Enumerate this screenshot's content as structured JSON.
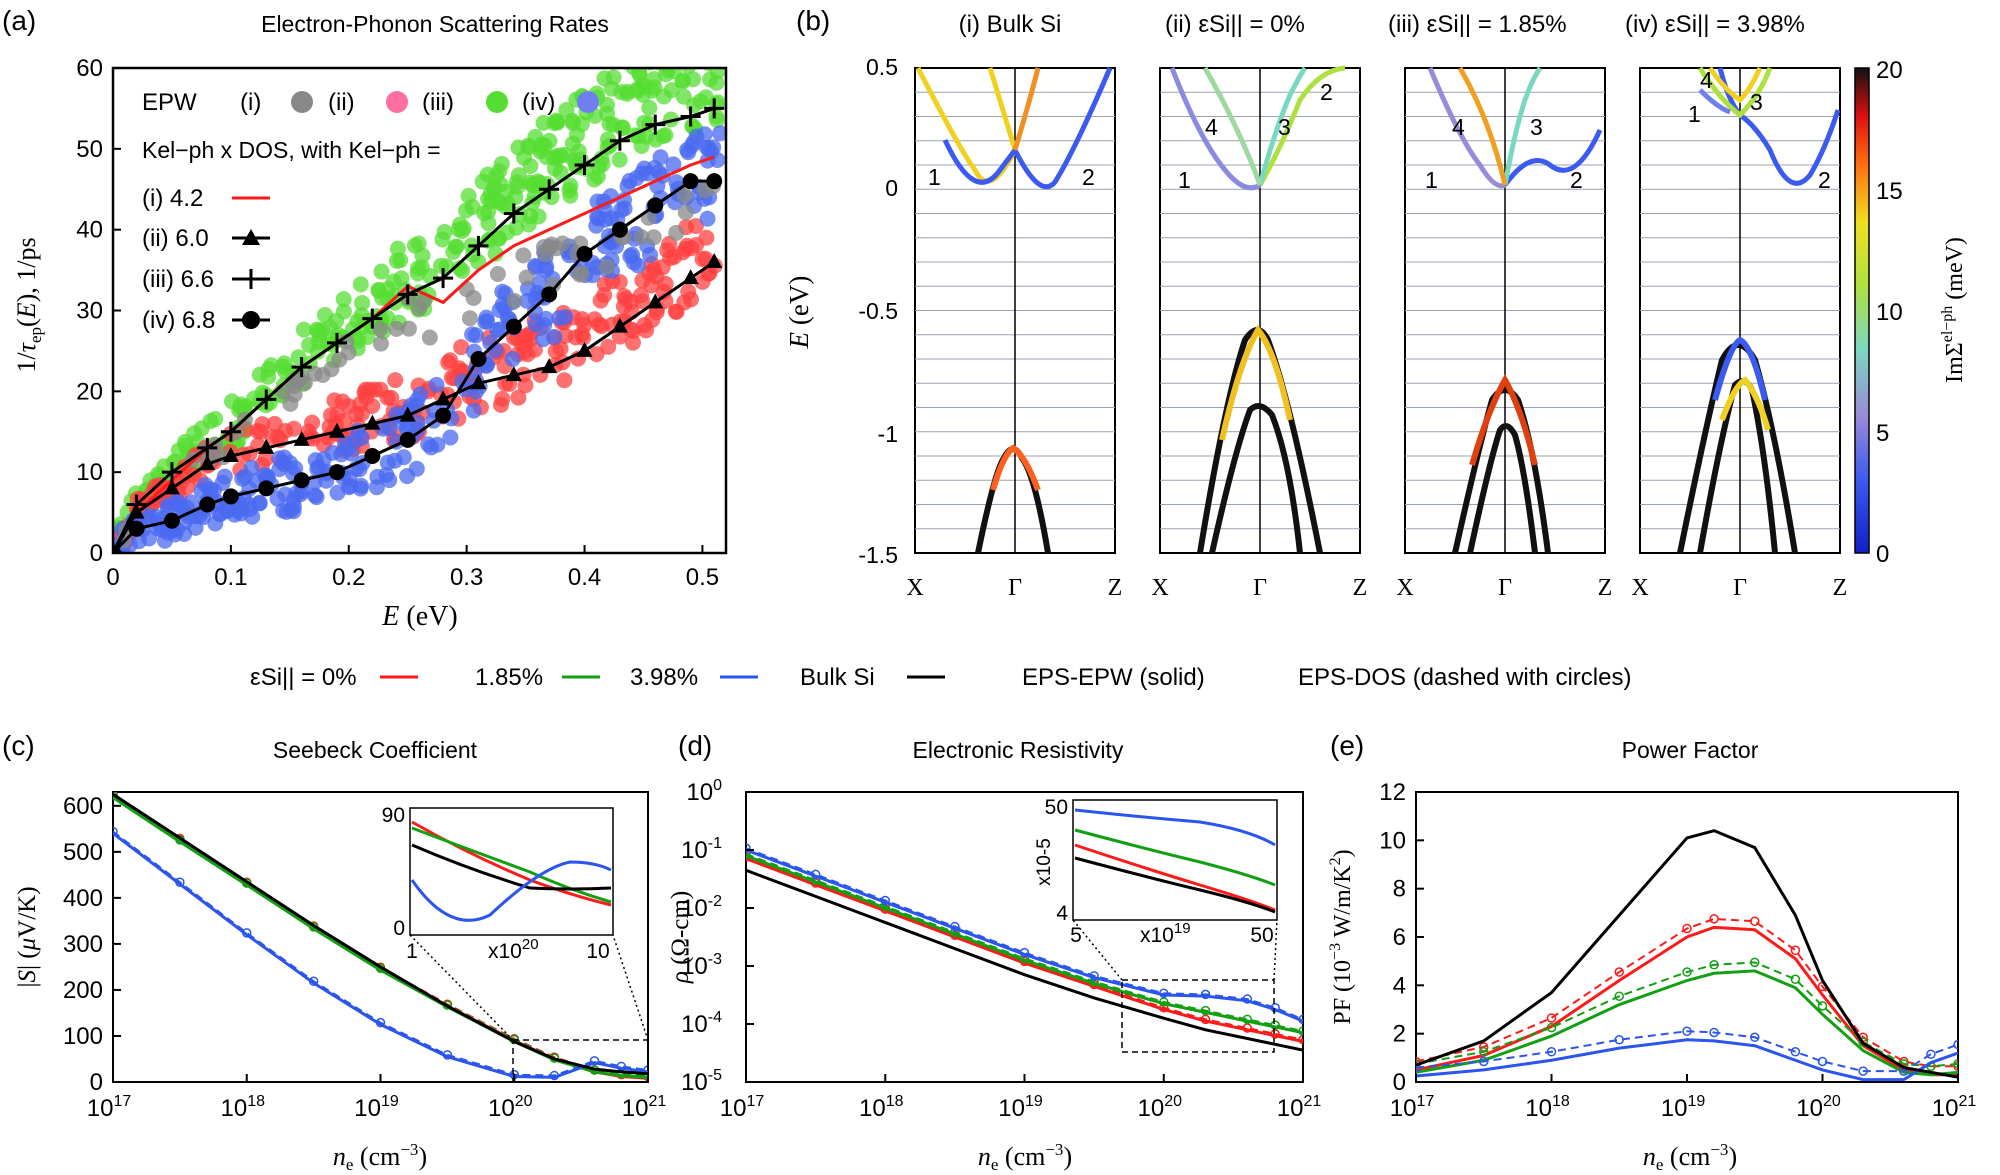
{
  "colors": {
    "red": "#ff1a1a",
    "green": "#12a012",
    "blue": "#2a55ee",
    "black": "#000000",
    "grey": "#888888",
    "pink": "#ff6fa0",
    "lgreen": "#55dd33",
    "lblue": "#6f7ff0"
  },
  "panel_a": {
    "label": "(a)",
    "title": "Electron-Phonon Scattering Rates",
    "xlabel": "E (eV)",
    "ylabel": "1/τep(E), 1/ps",
    "xticks": [
      "0",
      "0.1",
      "0.2",
      "0.3",
      "0.4",
      "0.5"
    ],
    "yticks": [
      "0",
      "10",
      "20",
      "30",
      "40",
      "50",
      "60"
    ],
    "legend": {
      "epw_label": "EPW",
      "epw_entries": [
        "(i)",
        "(ii)",
        "(iii)",
        "(iv)"
      ],
      "kel_line": "Kel−ph x DOS, with Kel−ph =",
      "entries": [
        {
          "label": "(i) 4.2",
          "color": "red",
          "marker": "none"
        },
        {
          "label": "(ii) 6.0",
          "color": "black",
          "marker": "triangle"
        },
        {
          "label": "(iii) 6.6",
          "color": "black",
          "marker": "plus"
        },
        {
          "label": "(iv) 6.8",
          "color": "black",
          "marker": "circle"
        }
      ]
    }
  },
  "panel_b": {
    "label": "(b)",
    "subplots": [
      {
        "title": "(i) Bulk Si",
        "band_labels": [
          "1",
          "2"
        ]
      },
      {
        "title": "(ii) εSi|| = 0%",
        "band_labels": [
          "1",
          "2",
          "3",
          "4"
        ]
      },
      {
        "title": "(iii) εSi|| = 1.85%",
        "band_labels": [
          "1",
          "2",
          "3",
          "4"
        ]
      },
      {
        "title": "(iv) εSi|| = 3.98%",
        "band_labels": [
          "1",
          "2",
          "3",
          "4"
        ]
      }
    ],
    "ylabel": "E (eV)",
    "yticks": [
      "0.5",
      "0",
      "-0.5",
      "-1",
      "-1.5"
    ],
    "kpoints": [
      "X",
      "Γ",
      "Z"
    ],
    "colorbar": {
      "label": "ImΣel−ph (meV)",
      "ticks": [
        "20",
        "15",
        "10",
        "5",
        "0"
      ]
    }
  },
  "middle_legend": {
    "eps_label": "εSi|| = 0%",
    "items": [
      "1.85%",
      "3.98%",
      "Bulk Si"
    ],
    "epw_note": "EPS-EPW (solid)",
    "dos_note": "EPS-DOS (dashed with circles)"
  },
  "panel_c": {
    "label": "(c)",
    "title": "Seebeck Coefficient",
    "ylabel": "|S| (μV/K)",
    "xlabel": "ne (cm−3)",
    "yticks": [
      "0",
      "100",
      "200",
      "300",
      "400",
      "500",
      "600"
    ],
    "xticks": [
      "10",
      "10",
      "10",
      "10",
      "10"
    ],
    "xexp": [
      "17",
      "18",
      "19",
      "20",
      "21"
    ],
    "inset": {
      "yticks": [
        "90",
        "0"
      ],
      "xticks": [
        "1",
        "10"
      ],
      "xmult": "x10",
      "xmult_exp": "20"
    }
  },
  "panel_d": {
    "label": "(d)",
    "title": "Electronic Resistivity",
    "ylabel": "ρ (Ω-cm)",
    "xlabel": "ne (cm−3)",
    "yexp": [
      "0",
      "-1",
      "-2",
      "-3",
      "-4",
      "-5"
    ],
    "xticks": [
      "10",
      "10",
      "10",
      "10",
      "10"
    ],
    "xexp": [
      "17",
      "18",
      "19",
      "20",
      "21"
    ],
    "inset": {
      "yticks": [
        "50",
        "4"
      ],
      "ymult": "x10-5",
      "xticks": [
        "5",
        "50"
      ],
      "xmult": "x10",
      "xmult_exp": "19"
    }
  },
  "panel_e": {
    "label": "(e)",
    "title": "Power Factor",
    "ylabel": "PF (10−3 W/m/K2)",
    "xlabel": "ne (cm−3)",
    "yticks": [
      "0",
      "2",
      "4",
      "6",
      "8",
      "10",
      "12"
    ],
    "xticks": [
      "10",
      "10",
      "10",
      "10",
      "10"
    ],
    "xexp": [
      "17",
      "18",
      "19",
      "20",
      "21"
    ]
  },
  "chart_data": [
    {
      "type": "scatter",
      "panel": "a",
      "xlim": [
        0,
        0.52
      ],
      "ylim": [
        0,
        60
      ],
      "series": [
        {
          "name": "(i) 4.2",
          "style": "line",
          "color": "red",
          "x": [
            0,
            0.02,
            0.05,
            0.08,
            0.1,
            0.13,
            0.16,
            0.19,
            0.22,
            0.25,
            0.28,
            0.31,
            0.34,
            0.37,
            0.4,
            0.43,
            0.46,
            0.49,
            0.51
          ],
          "y": [
            0,
            5,
            9,
            13,
            15,
            19,
            23,
            26,
            29,
            33,
            31,
            35,
            38,
            40,
            42,
            44,
            46,
            48,
            49
          ]
        },
        {
          "name": "(ii) 6.0",
          "style": "triangle",
          "color": "black",
          "x": [
            0,
            0.02,
            0.05,
            0.08,
            0.1,
            0.13,
            0.16,
            0.19,
            0.22,
            0.25,
            0.28,
            0.31,
            0.34,
            0.37,
            0.4,
            0.43,
            0.46,
            0.49,
            0.51
          ],
          "y": [
            0,
            5,
            8,
            11,
            12,
            13,
            14,
            15,
            16,
            17,
            19,
            21,
            22,
            23,
            25,
            28,
            31,
            34,
            36
          ]
        },
        {
          "name": "(iii) 6.6",
          "style": "plus",
          "color": "black",
          "x": [
            0,
            0.02,
            0.05,
            0.08,
            0.1,
            0.13,
            0.16,
            0.19,
            0.22,
            0.25,
            0.28,
            0.31,
            0.34,
            0.37,
            0.4,
            0.43,
            0.46,
            0.49,
            0.51
          ],
          "y": [
            0,
            6,
            10,
            13,
            15,
            19,
            23,
            26,
            29,
            32,
            34,
            38,
            42,
            45,
            48,
            51,
            53,
            54,
            55
          ]
        },
        {
          "name": "(iv) 6.8",
          "style": "circle",
          "color": "black",
          "x": [
            0,
            0.02,
            0.05,
            0.08,
            0.1,
            0.13,
            0.16,
            0.19,
            0.22,
            0.25,
            0.28,
            0.31,
            0.34,
            0.37,
            0.4,
            0.43,
            0.46,
            0.49,
            0.51
          ],
          "y": [
            0,
            3,
            4,
            6,
            7,
            8,
            9,
            10,
            12,
            14,
            17,
            24,
            28,
            32,
            37,
            40,
            43,
            46,
            46
          ]
        }
      ]
    },
    {
      "type": "line",
      "panel": "c",
      "xscale": "log",
      "xlim": [
        17,
        21
      ],
      "ylim": [
        0,
        630
      ],
      "x_log10": [
        17,
        17.5,
        18,
        18.5,
        19,
        19.5,
        20,
        20.3,
        20.6,
        20.8,
        21
      ],
      "series": [
        {
          "name": "0%",
          "color": "red",
          "y": [
            620,
            525,
            430,
            335,
            245,
            165,
            90,
            50,
            22,
            12,
            8
          ]
        },
        {
          "name": "1.85%",
          "color": "green",
          "y": [
            618,
            522,
            428,
            333,
            243,
            163,
            88,
            48,
            22,
            14,
            10
          ]
        },
        {
          "name": "3.98%",
          "color": "blue",
          "y": [
            540,
            430,
            320,
            215,
            125,
            55,
            12,
            10,
            42,
            30,
            22
          ]
        },
        {
          "name": "Bulk Si",
          "color": "black",
          "y": [
            625,
            530,
            435,
            340,
            250,
            165,
            88,
            50,
            28,
            22,
            18
          ]
        }
      ]
    },
    {
      "type": "line",
      "panel": "d",
      "xscale": "log",
      "yscale": "log",
      "xlim": [
        17,
        21
      ],
      "ylim": [
        -5,
        0
      ],
      "x_log10": [
        17,
        17.5,
        18,
        18.5,
        19,
        19.5,
        20,
        20.3,
        20.6,
        20.8,
        21
      ],
      "series": [
        {
          "name": "0%",
          "color": "red",
          "y_log10": [
            -1.15,
            -1.6,
            -2.05,
            -2.5,
            -2.95,
            -3.35,
            -3.75,
            -3.95,
            -4.1,
            -4.2,
            -4.3
          ]
        },
        {
          "name": "1.85%",
          "color": "green",
          "y_log10": [
            -1.1,
            -1.55,
            -2.0,
            -2.45,
            -2.9,
            -3.3,
            -3.65,
            -3.8,
            -3.95,
            -4.05,
            -4.15
          ]
        },
        {
          "name": "3.98%",
          "color": "blue",
          "y_log10": [
            -1.0,
            -1.45,
            -1.9,
            -2.35,
            -2.8,
            -3.2,
            -3.5,
            -3.52,
            -3.6,
            -3.75,
            -3.95
          ]
        },
        {
          "name": "Bulk Si",
          "color": "black",
          "y_log10": [
            -1.35,
            -1.8,
            -2.25,
            -2.7,
            -3.15,
            -3.55,
            -3.9,
            -4.1,
            -4.25,
            -4.35,
            -4.45
          ]
        }
      ]
    },
    {
      "type": "line",
      "panel": "e",
      "xscale": "log",
      "xlim": [
        17,
        21
      ],
      "ylim": [
        0,
        12
      ],
      "x_log10": [
        17,
        17.5,
        18,
        18.5,
        19,
        19.2,
        19.5,
        19.8,
        20,
        20.3,
        20.6,
        20.8,
        21
      ],
      "series": [
        {
          "name": "0%",
          "color": "red",
          "y": [
            0.5,
            1.1,
            2.3,
            4.2,
            6.0,
            6.4,
            6.3,
            5.1,
            3.6,
            1.5,
            0.5,
            0.3,
            0.3
          ]
        },
        {
          "name": "1.85%",
          "color": "green",
          "y": [
            0.4,
            0.9,
            1.9,
            3.2,
            4.2,
            4.5,
            4.6,
            3.9,
            2.8,
            1.3,
            0.4,
            0.3,
            0.4
          ]
        },
        {
          "name": "3.98%",
          "color": "blue",
          "y": [
            0.25,
            0.5,
            0.9,
            1.4,
            1.75,
            1.7,
            1.5,
            0.9,
            0.5,
            0.1,
            0.1,
            0.8,
            1.2
          ]
        },
        {
          "name": "Bulk Si",
          "color": "black",
          "y": [
            0.7,
            1.7,
            3.7,
            6.9,
            10.1,
            10.4,
            9.7,
            6.9,
            4.2,
            1.6,
            0.6,
            0.4,
            0.2
          ]
        }
      ]
    }
  ]
}
